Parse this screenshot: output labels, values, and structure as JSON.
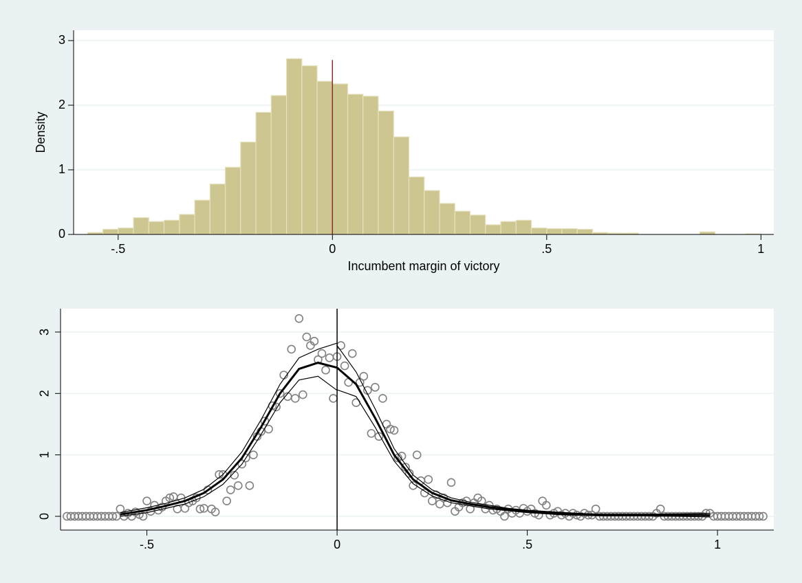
{
  "chart_data": [
    {
      "type": "histogram",
      "xlabel": "Incumbent margin of victory",
      "ylabel": "Density",
      "bins": [
        -0.5714,
        -0.5357,
        -0.5,
        -0.4643,
        -0.4286,
        -0.3929,
        -0.3571,
        -0.3214,
        -0.2857,
        -0.25,
        -0.2143,
        -0.1786,
        -0.1429,
        -0.1071,
        -0.0714,
        -0.0357,
        0,
        0.0357,
        0.0714,
        0.1071,
        0.1429,
        0.1786,
        0.2143,
        0.25,
        0.2857,
        0.3214,
        0.3571,
        0.3929,
        0.4286,
        0.4643,
        0.5,
        0.5357,
        0.5714,
        0.6071,
        0.6429,
        0.6786,
        0.7143,
        0.75,
        0.7857,
        0.8214,
        0.8571,
        0.8929,
        0.9286,
        0.9643,
        1
      ],
      "values": [
        0.03,
        0.08,
        0.1,
        0.26,
        0.2,
        0.22,
        0.31,
        0.53,
        0.78,
        1.04,
        1.43,
        1.89,
        2.15,
        2.72,
        2.61,
        2.37,
        2.33,
        2.17,
        2.14,
        1.91,
        1.51,
        0.89,
        0.68,
        0.48,
        0.36,
        0.3,
        0.15,
        0.2,
        0.22,
        0.1,
        0.09,
        0.09,
        0.08,
        0.03,
        0.02,
        0.02,
        0,
        0,
        0,
        0,
        0.04,
        0,
        0,
        0.01
      ],
      "color": "#cdc690",
      "edge_color": "#e6e2c0",
      "xline": {
        "value": 0,
        "top": 2.7,
        "color": "#8c2d2d"
      },
      "xlim": [
        -0.604,
        1.03
      ],
      "ylim": [
        0,
        3.16
      ],
      "xticks": [
        {
          "value": -0.5,
          "label": "-.5"
        },
        0,
        {
          "value": 0.5,
          "label": ".5"
        },
        1
      ],
      "yticks": [
        0,
        1,
        2,
        3
      ],
      "grid": true
    },
    {
      "type": "scatter",
      "x": [
        -0.71,
        -0.7,
        -0.69,
        -0.68,
        -0.67,
        -0.66,
        -0.65,
        -0.64,
        -0.63,
        -0.62,
        -0.61,
        -0.6,
        -0.59,
        -0.58,
        -0.57,
        -0.56,
        -0.55,
        -0.54,
        -0.53,
        -0.52,
        -0.51,
        -0.5,
        -0.49,
        -0.48,
        -0.47,
        -0.46,
        -0.45,
        -0.44,
        -0.43,
        -0.42,
        -0.41,
        -0.4,
        -0.39,
        -0.38,
        -0.37,
        -0.36,
        -0.35,
        -0.34,
        -0.33,
        -0.32,
        -0.31,
        -0.3,
        -0.29,
        -0.28,
        -0.27,
        -0.26,
        -0.25,
        -0.24,
        -0.23,
        -0.22,
        -0.21,
        -0.2,
        -0.19,
        -0.18,
        -0.17,
        -0.16,
        -0.15,
        -0.14,
        -0.13,
        -0.12,
        -0.11,
        -0.1,
        -0.09,
        -0.08,
        -0.07,
        -0.06,
        -0.05,
        -0.04,
        -0.03,
        -0.02,
        -0.01,
        0,
        0.01,
        0.02,
        0.03,
        0.04,
        0.05,
        0.06,
        0.07,
        0.08,
        0.09,
        0.1,
        0.11,
        0.12,
        0.13,
        0.14,
        0.15,
        0.16,
        0.17,
        0.18,
        0.19,
        0.2,
        0.21,
        0.22,
        0.23,
        0.24,
        0.25,
        0.26,
        0.27,
        0.28,
        0.29,
        0.3,
        0.31,
        0.32,
        0.33,
        0.34,
        0.35,
        0.36,
        0.37,
        0.38,
        0.39,
        0.4,
        0.41,
        0.42,
        0.43,
        0.44,
        0.45,
        0.46,
        0.47,
        0.48,
        0.49,
        0.5,
        0.51,
        0.52,
        0.53,
        0.54,
        0.55,
        0.56,
        0.57,
        0.58,
        0.59,
        0.6,
        0.61,
        0.62,
        0.63,
        0.64,
        0.65,
        0.66,
        0.67,
        0.68,
        0.69,
        0.7,
        0.71,
        0.72,
        0.73,
        0.74,
        0.75,
        0.76,
        0.77,
        0.78,
        0.79,
        0.8,
        0.81,
        0.82,
        0.83,
        0.84,
        0.85,
        0.86,
        0.87,
        0.88,
        0.89,
        0.9,
        0.91,
        0.92,
        0.93,
        0.94,
        0.95,
        0.96,
        0.97,
        0.98,
        0.99,
        1,
        1.01,
        1.02,
        1.03,
        1.04,
        1.05,
        1.06,
        1.07,
        1.08,
        1.09,
        1.1,
        1.11,
        1.12
      ],
      "values": [
        0,
        0,
        0,
        0,
        0,
        0,
        0,
        0,
        0,
        0,
        0,
        0,
        0,
        0,
        0.12,
        0,
        0.05,
        0,
        0.07,
        0.03,
        0,
        0.25,
        0.08,
        0.18,
        0.1,
        0.15,
        0.25,
        0.3,
        0.32,
        0.12,
        0.3,
        0.13,
        0.22,
        0.25,
        0.3,
        0.12,
        0.13,
        0.43,
        0.12,
        0.07,
        0.68,
        0.68,
        0.25,
        0.43,
        0.67,
        0.5,
        0.85,
        0.95,
        0.5,
        1.0,
        1.3,
        1.38,
        1.55,
        1.42,
        1.8,
        1.78,
        2.0,
        2.3,
        1.95,
        2.72,
        1.92,
        3.22,
        1.98,
        2.92,
        2.78,
        2.85,
        2.55,
        2.65,
        2.38,
        2.58,
        1.92,
        2.6,
        2.78,
        2.45,
        2.18,
        2.65,
        1.85,
        2.18,
        2.28,
        2.05,
        1.35,
        2.1,
        1.3,
        1.92,
        1.5,
        1.42,
        1.4,
        0.95,
        0.98,
        0.8,
        0.7,
        0.5,
        1.0,
        0.58,
        0.38,
        0.6,
        0.25,
        0.35,
        0.2,
        0.3,
        0.22,
        0.55,
        0.08,
        0.15,
        0.22,
        0.25,
        0.12,
        0.22,
        0.3,
        0.25,
        0.12,
        0.18,
        0.1,
        0.12,
        0.08,
        0,
        0.12,
        0.05,
        0.1,
        0.05,
        0.13,
        0.08,
        0.12,
        0.05,
        0.02,
        0.25,
        0.18,
        0.02,
        0.05,
        0.08,
        0.02,
        0.05,
        0,
        0.05,
        0.02,
        0,
        0.05,
        0.02,
        0.02,
        0.12,
        0,
        0,
        0,
        0,
        0,
        0,
        0,
        0,
        0,
        0,
        0,
        0,
        0,
        0,
        0,
        0.05,
        0.12,
        0,
        0,
        0,
        0,
        0,
        0,
        0,
        0,
        0,
        0,
        0,
        0.05,
        0.05,
        0,
        0,
        0,
        0,
        0,
        0,
        0,
        0,
        0,
        0,
        0,
        0,
        0,
        0
      ],
      "color": "#808080",
      "fits": [
        {
          "x": [
            -0.57,
            -0.5,
            -0.45,
            -0.4,
            -0.35,
            -0.3,
            -0.25,
            -0.2,
            -0.15,
            -0.1,
            -0.05,
            0
          ],
          "values": [
            0.03,
            0.1,
            0.17,
            0.25,
            0.38,
            0.6,
            0.95,
            1.45,
            2.0,
            2.4,
            2.5,
            2.42
          ],
          "width": 3
        },
        {
          "x": [
            -0.57,
            -0.5,
            -0.45,
            -0.4,
            -0.35,
            -0.3,
            -0.25,
            -0.2,
            -0.15,
            -0.1,
            -0.05,
            0
          ],
          "values": [
            0.06,
            0.14,
            0.21,
            0.3,
            0.44,
            0.68,
            1.05,
            1.57,
            2.15,
            2.58,
            2.72,
            2.82
          ],
          "width": 1.2
        },
        {
          "x": [
            -0.57,
            -0.5,
            -0.45,
            -0.4,
            -0.35,
            -0.3,
            -0.25,
            -0.2,
            -0.15,
            -0.1,
            -0.05,
            0
          ],
          "values": [
            0,
            0.06,
            0.13,
            0.2,
            0.32,
            0.52,
            0.85,
            1.33,
            1.85,
            2.22,
            2.28,
            2.05
          ],
          "width": 1.2
        },
        {
          "x": [
            0,
            0.05,
            0.1,
            0.15,
            0.2,
            0.25,
            0.3,
            0.35,
            0.4,
            0.45,
            0.5,
            0.55,
            0.6,
            0.65,
            0.7,
            0.8,
            0.9,
            0.98
          ],
          "values": [
            2.42,
            2.15,
            1.6,
            1.0,
            0.6,
            0.38,
            0.26,
            0.2,
            0.15,
            0.11,
            0.08,
            0.06,
            0.04,
            0.03,
            0.02,
            0.02,
            0.02,
            0.02
          ],
          "width": 3
        },
        {
          "x": [
            0,
            0.05,
            0.1,
            0.15,
            0.2,
            0.25,
            0.3,
            0.35,
            0.4,
            0.45,
            0.5,
            0.55,
            0.6,
            0.65,
            0.7,
            0.8,
            0.9,
            0.98
          ],
          "values": [
            2.78,
            2.35,
            1.75,
            1.1,
            0.67,
            0.43,
            0.3,
            0.23,
            0.18,
            0.13,
            0.1,
            0.08,
            0.06,
            0.045,
            0.035,
            0.035,
            0.04,
            0.05
          ],
          "width": 1.2
        },
        {
          "x": [
            0,
            0.05,
            0.1,
            0.15,
            0.2,
            0.25,
            0.3,
            0.35,
            0.4,
            0.45,
            0.5,
            0.55,
            0.6,
            0.65,
            0.7,
            0.8,
            0.9,
            0.98
          ],
          "values": [
            2.06,
            1.95,
            1.45,
            0.9,
            0.53,
            0.33,
            0.22,
            0.17,
            0.12,
            0.09,
            0.06,
            0.04,
            0.02,
            0.015,
            0.005,
            0.005,
            0,
            -0.01
          ],
          "width": 1.2
        }
      ],
      "fit_color": "#000000",
      "xline": {
        "value": 0,
        "color": "#000000"
      },
      "xlim": [
        -0.727,
        1.148
      ],
      "ylim": [
        -0.224,
        3.38
      ],
      "xticks": [
        {
          "value": -0.5,
          "label": "-.5"
        },
        0,
        {
          "value": 0.5,
          "label": ".5"
        },
        1
      ],
      "yticks": [
        0,
        1,
        2,
        3
      ],
      "grid": true
    }
  ]
}
